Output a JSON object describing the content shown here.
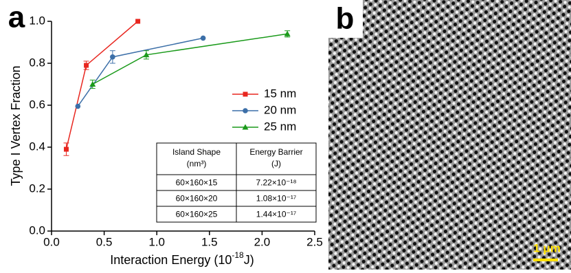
{
  "chart_data": {
    "type": "line",
    "panel_label": "a",
    "x_label": "Interaction Energy (10",
    "x_label_sup": "-18",
    "x_label_end": "J)",
    "y_label": "Type I Vertex Fraction",
    "xlim": [
      0,
      2.5
    ],
    "ylim": [
      0,
      1
    ],
    "xticks": [
      {
        "value": 0,
        "label": "0.0"
      },
      0.5,
      {
        "value": 1,
        "label": "1.0"
      },
      1.5,
      {
        "value": 2,
        "label": "2.0"
      },
      2.5
    ],
    "yticks": [
      {
        "value": 0,
        "label": "0.0"
      },
      0.2,
      0.4,
      0.6,
      0.8,
      {
        "value": 1,
        "label": "1.0"
      }
    ],
    "legend": "right",
    "series": [
      {
        "name": "15 nm",
        "color": "#e8261f",
        "marker": "square",
        "x": [
          0.14,
          0.33,
          0.82
        ],
        "values": [
          0.39,
          0.79,
          1.0
        ],
        "errors": [
          0.03,
          0.02,
          null
        ]
      },
      {
        "name": "20 nm",
        "color": "#3c6fa8",
        "marker": "circle",
        "x": [
          0.25,
          0.58,
          1.44
        ],
        "values": [
          0.595,
          0.83,
          0.92
        ],
        "errors": [
          null,
          0.03,
          null
        ]
      },
      {
        "name": "25 nm",
        "color": "#1a9a1a",
        "marker": "triangle",
        "x": [
          0.39,
          0.9,
          2.24
        ],
        "values": [
          0.7,
          0.84,
          0.94
        ],
        "errors": [
          0.02,
          0.02,
          0.015
        ]
      }
    ],
    "table": {
      "header": [
        [
          "Island Shape",
          "(nm³)"
        ],
        [
          "Energy Barrier",
          "(J)"
        ]
      ],
      "rows": [
        [
          "60×160×15",
          "7.22×10⁻¹⁸"
        ],
        [
          "60×160×20",
          "1.08×10⁻¹⁷"
        ],
        [
          "60×160×25",
          "1.44×10⁻¹⁷"
        ]
      ]
    }
  },
  "image_panel": {
    "panel_label": "b",
    "scale_bar": "1 μm"
  }
}
